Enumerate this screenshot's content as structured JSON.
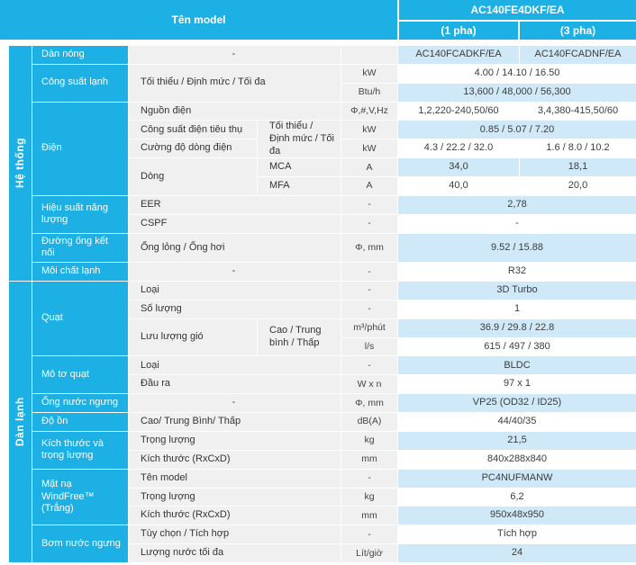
{
  "header": {
    "title": "Tên model",
    "model": "AC140FE4DKF/EA",
    "phase1": "(1 pha)",
    "phase2": "(3 pha)"
  },
  "sections": {
    "system": "Hệ thống",
    "indoor": "Dàn lạnh"
  },
  "rows": {
    "r1": {
      "h": "Dàn nóng",
      "label": "-",
      "v1": "AC140FCADKF/EA",
      "v2": "AC140FCADNF/EA"
    },
    "r2": {
      "h": "Công suất lạnh",
      "label": "Tối thiểu / Định mức / Tối đa",
      "unit": "kW",
      "v": "4.00 / 14.10 / 16.50"
    },
    "r3": {
      "unit": "Btu/h",
      "v": "13,600 / 48,000 / 56,300"
    },
    "r4": {
      "h": "Điện",
      "label": "Nguồn điện",
      "unit": "Φ,#,V,Hz",
      "v1": "1,2,220-240,50/60",
      "v2": "3,4,380-415,50/60"
    },
    "r5": {
      "label": "Công suất điện tiêu thụ",
      "sub": "Tối thiểu / Định mức / Tối đa",
      "unit": "kW",
      "v": "0.85 / 5.07 / 7.20"
    },
    "r6": {
      "label": "Cường độ dòng điện",
      "unit": "kW",
      "v1": "4.3 / 22.2 / 32.0",
      "v2": "1.6 / 8.0 / 10.2"
    },
    "r7": {
      "label": "Dòng",
      "sub": "MCA",
      "unit": "A",
      "v1": "34,0",
      "v2": "18,1"
    },
    "r8": {
      "sub": "MFA",
      "unit": "A",
      "v1": "40,0",
      "v2": "20,0"
    },
    "r9": {
      "h": "Hiệu suất năng lượng",
      "label": "EER",
      "unit": "-",
      "v": "2,78"
    },
    "r10": {
      "label": "CSPF",
      "unit": "-",
      "v": "-"
    },
    "r11": {
      "h": "Đường ống kết nối",
      "label": "Ống lỏng / Ống hơi",
      "unit": "Φ, mm",
      "v": "9.52 / 15.88"
    },
    "r12": {
      "h": "Môi chất lạnh",
      "label": "-",
      "unit": "-",
      "v": "R32"
    },
    "r13": {
      "h": "Quạt",
      "label": "Loại",
      "unit": "-",
      "v": "3D Turbo"
    },
    "r14": {
      "label": "Số lượng",
      "unit": "-",
      "v": "1"
    },
    "r15": {
      "label": "Lưu lượng gió",
      "sub": "Cao / Trung bình / Thấp",
      "unit": "m³/phút",
      "v": "36.9 / 29.8 / 22.8"
    },
    "r16": {
      "unit": "l/s",
      "v": "615 / 497 / 380"
    },
    "r17": {
      "h": "Mô tơ quạt",
      "label": "Loại",
      "unit": "-",
      "v": "BLDC"
    },
    "r18": {
      "label": "Đầu ra",
      "unit": "W x n",
      "v": "97 x 1"
    },
    "r19": {
      "h": "Ống nước ngưng",
      "label": "-",
      "unit": "Φ, mm",
      "v": "VP25 (OD32 / ID25)"
    },
    "r20": {
      "h": "Độ ồn",
      "label": "Cao/ Trung Bình/ Thấp",
      "unit": "dB(A)",
      "v": "44/40/35"
    },
    "r21": {
      "h": "Kích thước và trọng lượng",
      "label": "Trọng lượng",
      "unit": "kg",
      "v": "21,5"
    },
    "r22": {
      "label": "Kích thước (RxCxD)",
      "unit": "mm",
      "v": "840x288x840"
    },
    "r23": {
      "h": "Mặt nạ WindFree™ (Trắng)",
      "label": "Tên model",
      "unit": "-",
      "v": "PC4NUFMANW"
    },
    "r24": {
      "label": "Trọng lượng",
      "unit": "kg",
      "v": "6,2"
    },
    "r25": {
      "label": "Kích thước (RxCxD)",
      "unit": "mm",
      "v": "950x48x950"
    },
    "r26": {
      "h": "Bơm nước ngưng",
      "label": "Tùy chọn / Tích hợp",
      "unit": "-",
      "v": "Tích hợp"
    },
    "r27": {
      "label": "Lượng nước tối đa",
      "unit": "Lít/giờ",
      "v": "24"
    }
  },
  "colors": {
    "accent": "#1cb0e4",
    "value-blue": "#cfe9f8",
    "cell-gray": "#f0f0f0"
  }
}
